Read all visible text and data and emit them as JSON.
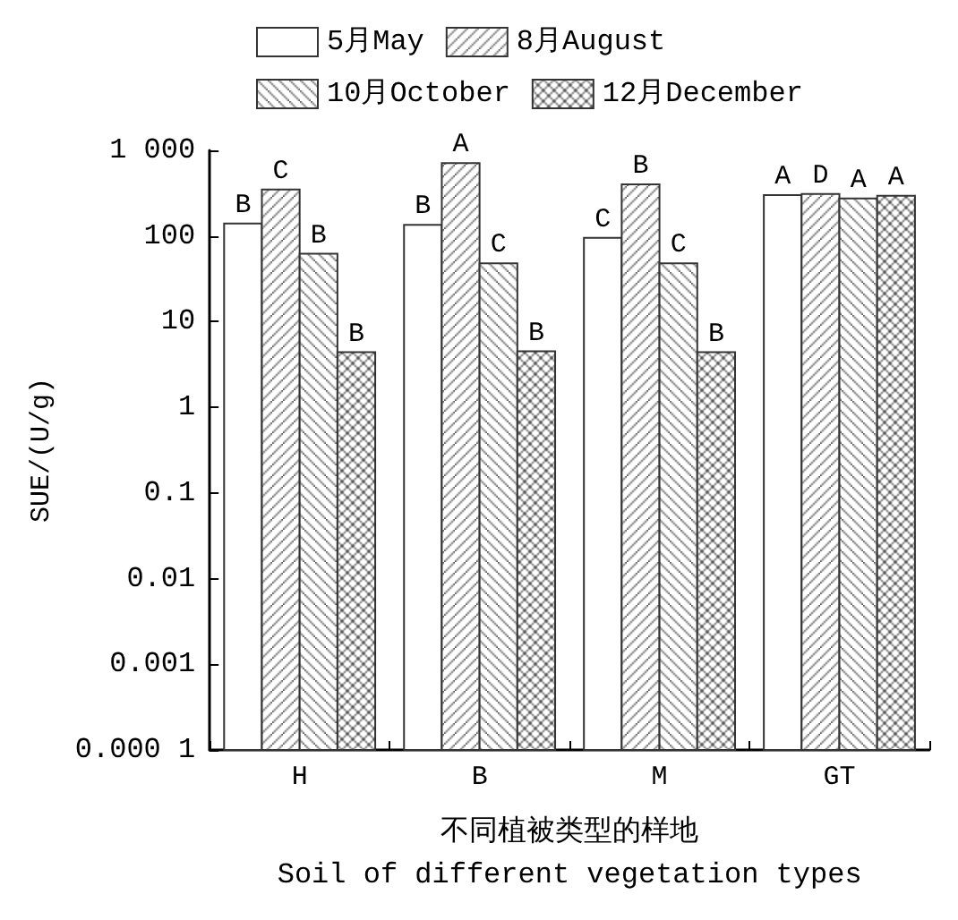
{
  "chart_data": {
    "type": "bar",
    "xlabel": "不同植被类型的样地\nSoil of different vegetation types",
    "ylabel": "SUE/(U/g)",
    "categories": [
      "H",
      "B",
      "M",
      "GT"
    ],
    "log": "y",
    "ylim": [
      0.0001,
      1000
    ],
    "yticks": [
      {
        "value": 0.0001,
        "label": "0.000 1"
      },
      0.001,
      0.01,
      0.1,
      1,
      10,
      100,
      {
        "value": 1000,
        "label": "1 000"
      }
    ],
    "grid": false,
    "legend": "top",
    "series": [
      {
        "name": "5月May",
        "color": "#ffffff",
        "values": [
          140,
          135,
          95,
          300
        ],
        "value_labels": [
          "B",
          "B",
          "C",
          "A"
        ]
      },
      {
        "name": "8月August",
        "color": "#333333",
        "values": [
          350,
          710,
          400,
          310
        ],
        "value_labels": [
          "C",
          "A",
          "B",
          "D"
        ]
      },
      {
        "name": "10月October",
        "color": "#333333",
        "values": [
          62,
          48,
          48,
          275
        ],
        "value_labels": [
          "B",
          "C",
          "C",
          "A"
        ]
      },
      {
        "name": "12月December",
        "color": "#333333",
        "values": [
          4.4,
          4.5,
          4.4,
          295
        ],
        "value_labels": [
          "B",
          "B",
          "B",
          "A"
        ]
      }
    ]
  }
}
